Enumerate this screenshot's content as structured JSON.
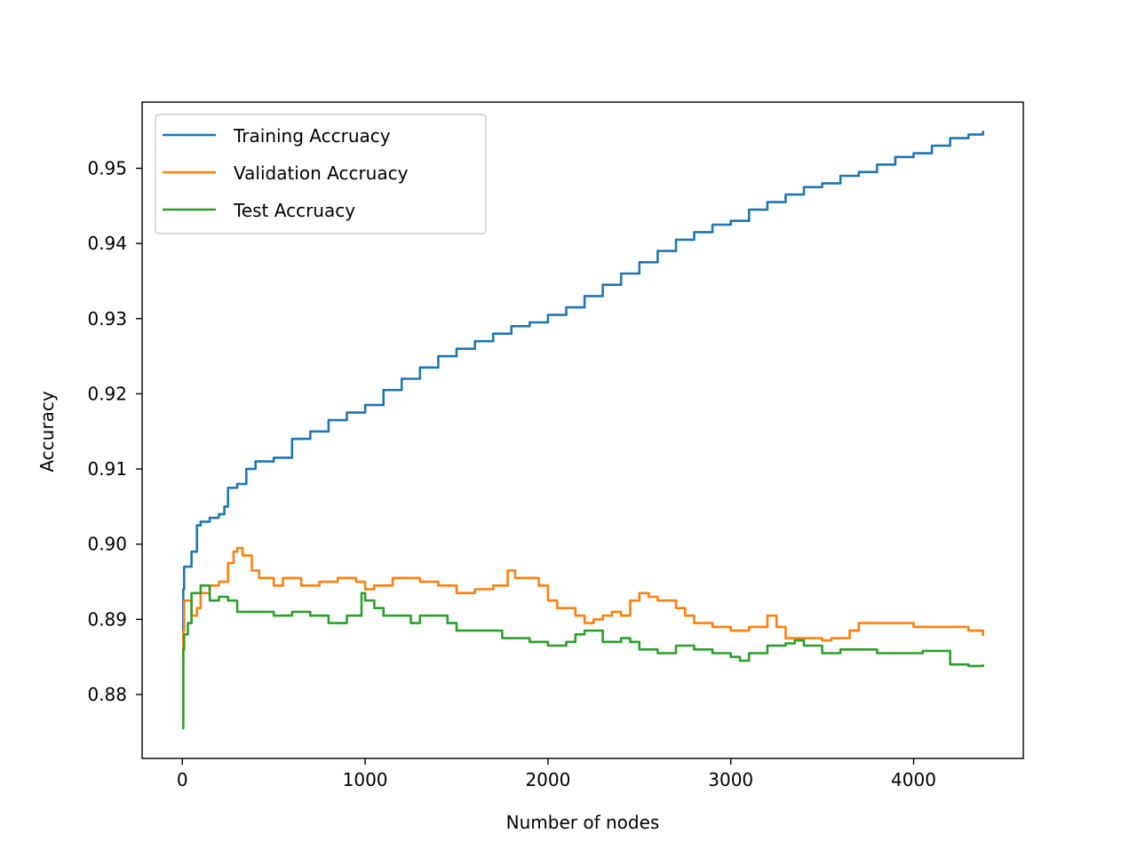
{
  "chart_data": {
    "type": "line",
    "title": "",
    "xlabel": "Number of nodes",
    "ylabel": "Accuracy",
    "xlim": [
      -220,
      4600
    ],
    "ylim": [
      0.8715,
      0.9588
    ],
    "x_ticks": [
      0,
      1000,
      2000,
      3000,
      4000
    ],
    "x_tick_labels": [
      "0",
      "1000",
      "2000",
      "3000",
      "4000"
    ],
    "y_ticks": [
      0.88,
      0.89,
      0.9,
      0.91,
      0.92,
      0.93,
      0.94,
      0.95
    ],
    "y_tick_labels": [
      "0.88",
      "0.89",
      "0.90",
      "0.91",
      "0.92",
      "0.93",
      "0.94",
      "0.95"
    ],
    "grid": false,
    "legend_position": "top-left",
    "series": [
      {
        "name": "Training Accruacy",
        "color": "#1f77b4",
        "x": [
          0,
          5,
          10,
          20,
          50,
          60,
          80,
          100,
          150,
          200,
          230,
          250,
          300,
          350,
          400,
          500,
          600,
          700,
          800,
          900,
          1000,
          1100,
          1200,
          1300,
          1400,
          1500,
          1600,
          1700,
          1800,
          1900,
          2000,
          2100,
          2200,
          2300,
          2400,
          2500,
          2600,
          2700,
          2800,
          2900,
          3000,
          3100,
          3200,
          3300,
          3400,
          3500,
          3600,
          3700,
          3800,
          3900,
          4000,
          4100,
          4200,
          4300,
          4380
        ],
        "y": [
          0.8835,
          0.894,
          0.897,
          0.897,
          0.899,
          0.899,
          0.9025,
          0.903,
          0.9035,
          0.904,
          0.905,
          0.9075,
          0.908,
          0.91,
          0.911,
          0.9115,
          0.914,
          0.915,
          0.9165,
          0.9175,
          0.9185,
          0.9205,
          0.922,
          0.9235,
          0.925,
          0.926,
          0.927,
          0.928,
          0.929,
          0.9295,
          0.9305,
          0.9315,
          0.933,
          0.9345,
          0.936,
          0.9375,
          0.939,
          0.9405,
          0.9415,
          0.9425,
          0.943,
          0.9445,
          0.9455,
          0.9465,
          0.9475,
          0.948,
          0.949,
          0.9495,
          0.9505,
          0.9515,
          0.952,
          0.953,
          0.954,
          0.9545,
          0.955
        ]
      },
      {
        "name": "Validation Accruacy",
        "color": "#ff7f0e",
        "x": [
          0,
          5,
          10,
          30,
          50,
          80,
          100,
          150,
          200,
          250,
          280,
          300,
          330,
          380,
          420,
          500,
          550,
          650,
          750,
          850,
          950,
          1000,
          1050,
          1150,
          1250,
          1300,
          1400,
          1500,
          1600,
          1700,
          1780,
          1820,
          1900,
          1950,
          2000,
          2050,
          2100,
          2150,
          2200,
          2250,
          2300,
          2350,
          2400,
          2450,
          2500,
          2550,
          2600,
          2700,
          2750,
          2800,
          2900,
          3000,
          3100,
          3150,
          3200,
          3250,
          3300,
          3400,
          3500,
          3550,
          3600,
          3650,
          3700,
          3800,
          3900,
          4000,
          4100,
          4200,
          4300,
          4350,
          4380
        ],
        "y": [
          0.8765,
          0.8885,
          0.8925,
          0.8925,
          0.8905,
          0.8915,
          0.8935,
          0.8945,
          0.895,
          0.8975,
          0.899,
          0.8995,
          0.8985,
          0.8965,
          0.8955,
          0.8945,
          0.8955,
          0.8945,
          0.895,
          0.8955,
          0.895,
          0.894,
          0.8945,
          0.8955,
          0.8955,
          0.895,
          0.8945,
          0.8935,
          0.894,
          0.8945,
          0.8965,
          0.8955,
          0.8955,
          0.8945,
          0.8925,
          0.8915,
          0.8915,
          0.8905,
          0.8895,
          0.89,
          0.8905,
          0.891,
          0.8905,
          0.8925,
          0.8935,
          0.893,
          0.8925,
          0.8915,
          0.8905,
          0.8895,
          0.889,
          0.8885,
          0.889,
          0.889,
          0.8905,
          0.889,
          0.8875,
          0.8875,
          0.8872,
          0.8875,
          0.8875,
          0.8885,
          0.8895,
          0.8895,
          0.8895,
          0.889,
          0.889,
          0.889,
          0.8885,
          0.8885,
          0.8878
        ]
      },
      {
        "name": "Test Accruacy",
        "color": "#2ca02c",
        "x": [
          0,
          5,
          10,
          30,
          50,
          80,
          100,
          150,
          200,
          250,
          300,
          400,
          500,
          600,
          700,
          800,
          900,
          950,
          980,
          1000,
          1050,
          1100,
          1200,
          1250,
          1300,
          1400,
          1450,
          1500,
          1600,
          1700,
          1750,
          1800,
          1900,
          2000,
          2100,
          2150,
          2200,
          2300,
          2400,
          2450,
          2500,
          2600,
          2700,
          2800,
          2900,
          3000,
          3050,
          3100,
          3200,
          3300,
          3350,
          3400,
          3500,
          3600,
          3700,
          3800,
          3900,
          4000,
          4050,
          4100,
          4150,
          4200,
          4300,
          4380
        ],
        "y": [
          0.8755,
          0.886,
          0.888,
          0.8895,
          0.8935,
          0.8935,
          0.8945,
          0.8925,
          0.893,
          0.8925,
          0.891,
          0.891,
          0.8905,
          0.891,
          0.8905,
          0.8895,
          0.8905,
          0.8905,
          0.8935,
          0.8925,
          0.8915,
          0.8905,
          0.8905,
          0.8895,
          0.8905,
          0.8905,
          0.8895,
          0.8885,
          0.8885,
          0.8885,
          0.8875,
          0.8875,
          0.887,
          0.8865,
          0.887,
          0.888,
          0.8885,
          0.887,
          0.8875,
          0.887,
          0.886,
          0.8855,
          0.8865,
          0.886,
          0.8855,
          0.885,
          0.8845,
          0.8855,
          0.8865,
          0.8868,
          0.8872,
          0.8865,
          0.8855,
          0.886,
          0.886,
          0.8855,
          0.8855,
          0.8855,
          0.8858,
          0.8858,
          0.8858,
          0.884,
          0.8838,
          0.884
        ]
      }
    ]
  }
}
